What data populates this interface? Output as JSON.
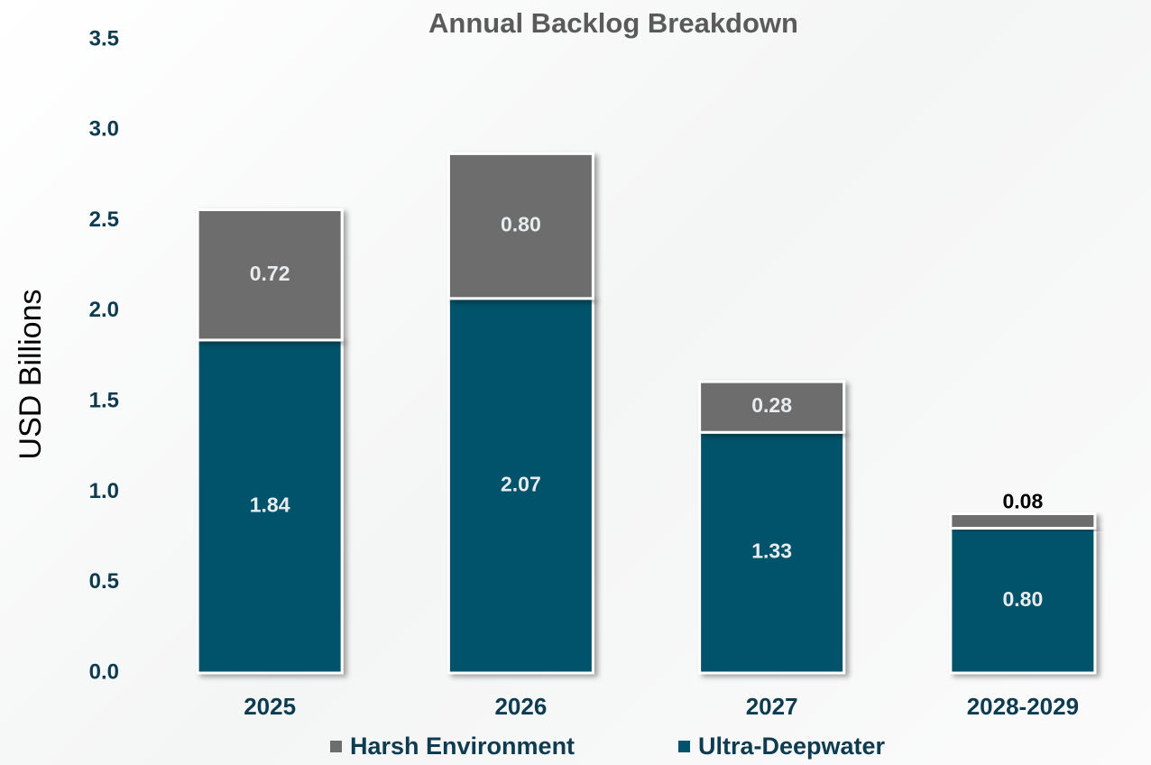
{
  "chart_data": {
    "type": "stacked-bar",
    "title": "Annual Backlog Breakdown",
    "y_label": "USD Billions",
    "categories": [
      "2025",
      "2026",
      "2027",
      "2028-2029"
    ],
    "series": [
      {
        "name": "Harsh Environment",
        "color": "#6d6d6d",
        "values": [
          0.72,
          0.8,
          0.28,
          0.08
        ],
        "value_labels": [
          "0.72",
          "0.80",
          "0.28",
          "0.08"
        ]
      },
      {
        "name": "Ultra-Deepwater",
        "color": "#00536b",
        "values": [
          1.84,
          2.07,
          1.33,
          0.8
        ],
        "value_labels": [
          "1.84",
          "2.07",
          "1.33",
          "0.80"
        ]
      }
    ],
    "ylim": [
      0,
      3.5
    ],
    "yticks": [
      {
        "value": 0,
        "label": "0.0"
      },
      0.5,
      {
        "value": 1,
        "label": "1.0"
      },
      1.5,
      {
        "value": 2,
        "label": "2.0"
      },
      2.5,
      {
        "value": 3,
        "label": "3.0"
      },
      3.5
    ]
  }
}
